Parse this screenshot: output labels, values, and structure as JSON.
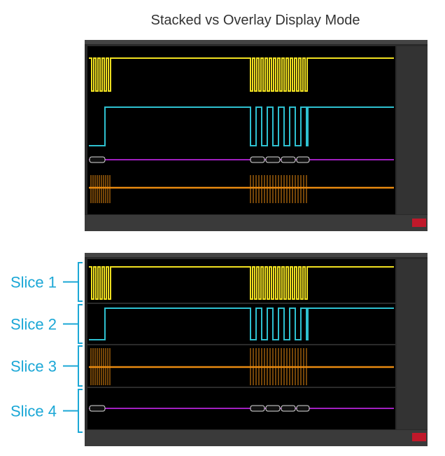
{
  "header": {
    "title": "Stacked vs Overlay Display Mode"
  },
  "slices": [
    {
      "label": "Slice 1"
    },
    {
      "label": "Slice 2"
    },
    {
      "label": "Slice 3"
    },
    {
      "label": "Slice 4"
    }
  ]
}
